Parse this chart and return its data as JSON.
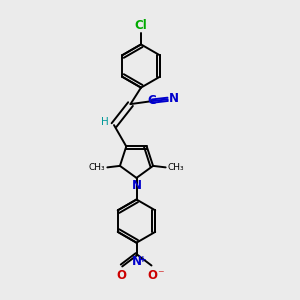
{
  "bg_color": "#ebebeb",
  "bond_color": "#000000",
  "cl_color": "#00aa00",
  "n_color": "#0000cc",
  "o_color": "#cc0000",
  "h_color": "#009999",
  "figsize": [
    3.0,
    3.0
  ],
  "dpi": 100,
  "bond_lw": 1.4,
  "font_size": 8.5,
  "font_size_small": 7.5,
  "xlim": [
    0,
    10
  ],
  "ylim": [
    0,
    10
  ]
}
